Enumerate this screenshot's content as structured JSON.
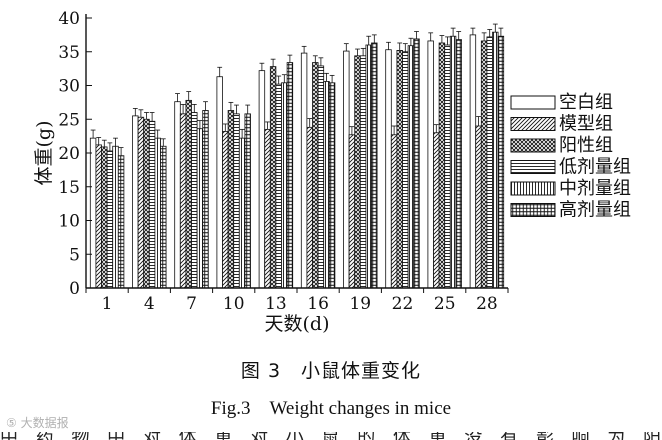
{
  "chart_data": {
    "type": "bar",
    "xlabel": "天数(d)",
    "ylabel": "体重(g)",
    "ylim": [
      0,
      40
    ],
    "yticks": [
      0,
      5,
      10,
      15,
      20,
      25,
      30,
      35,
      40
    ],
    "categories": [
      "1",
      "4",
      "7",
      "10",
      "13",
      "16",
      "19",
      "22",
      "25",
      "28"
    ],
    "legend_position": "right",
    "error_bars": true,
    "series": [
      {
        "name": "空白组",
        "pattern": "blank",
        "values": [
          22.2,
          25.5,
          27.6,
          31.3,
          32.2,
          34.8,
          35.1,
          35.3,
          36.6,
          37.5
        ],
        "errors": [
          1.2,
          1.1,
          1.2,
          1.4,
          1.1,
          1.0,
          1.1,
          1.1,
          1.2,
          1.0
        ]
      },
      {
        "name": "模型组",
        "pattern": "diagonal",
        "values": [
          21.2,
          25.3,
          25.8,
          23.2,
          23.5,
          23.8,
          22.7,
          22.7,
          23.0,
          24.0
        ],
        "errors": [
          1.1,
          1.1,
          1.4,
          1.1,
          1.1,
          1.3,
          1.2,
          1.3,
          1.2,
          1.4
        ]
      },
      {
        "name": "阳性组",
        "pattern": "crosshatch",
        "values": [
          20.9,
          25.0,
          27.8,
          26.3,
          32.8,
          33.4,
          34.4,
          35.2,
          36.3,
          36.6
        ],
        "errors": [
          1.0,
          1.0,
          1.3,
          1.2,
          1.1,
          1.0,
          1.0,
          1.1,
          1.1,
          1.2
        ]
      },
      {
        "name": "低剂量组",
        "pattern": "horizontal",
        "values": [
          20.3,
          24.7,
          26.0,
          25.8,
          30.2,
          32.9,
          34.4,
          35.0,
          36.0,
          37.2
        ],
        "errors": [
          1.2,
          1.3,
          1.2,
          1.3,
          1.2,
          1.2,
          1.1,
          1.2,
          1.2,
          1.1
        ]
      },
      {
        "name": "中剂量组",
        "pattern": "vertical",
        "values": [
          21.0,
          22.2,
          23.6,
          22.2,
          30.4,
          30.6,
          36.0,
          35.9,
          37.3,
          37.9
        ],
        "errors": [
          1.2,
          1.2,
          1.2,
          1.3,
          1.2,
          1.2,
          1.3,
          1.1,
          1.2,
          1.2
        ]
      },
      {
        "name": "高剂量组",
        "pattern": "grid",
        "values": [
          19.6,
          21.0,
          26.3,
          25.8,
          33.4,
          30.4,
          36.3,
          36.9,
          36.8,
          37.3
        ],
        "errors": [
          1.2,
          1.1,
          1.3,
          1.3,
          1.1,
          1.1,
          1.2,
          1.1,
          1.2,
          1.2
        ]
      }
    ]
  },
  "caption": {
    "cn": "图 3　小鼠体重变化",
    "en": "Fig.3　Weight changes in mice"
  },
  "watermark": "⑤ 大数据报",
  "cutoff_text": "中 药 物 中 对 体 重 对 小 鼠 的 体 重 没 有 影 响 为 阳 性 的"
}
